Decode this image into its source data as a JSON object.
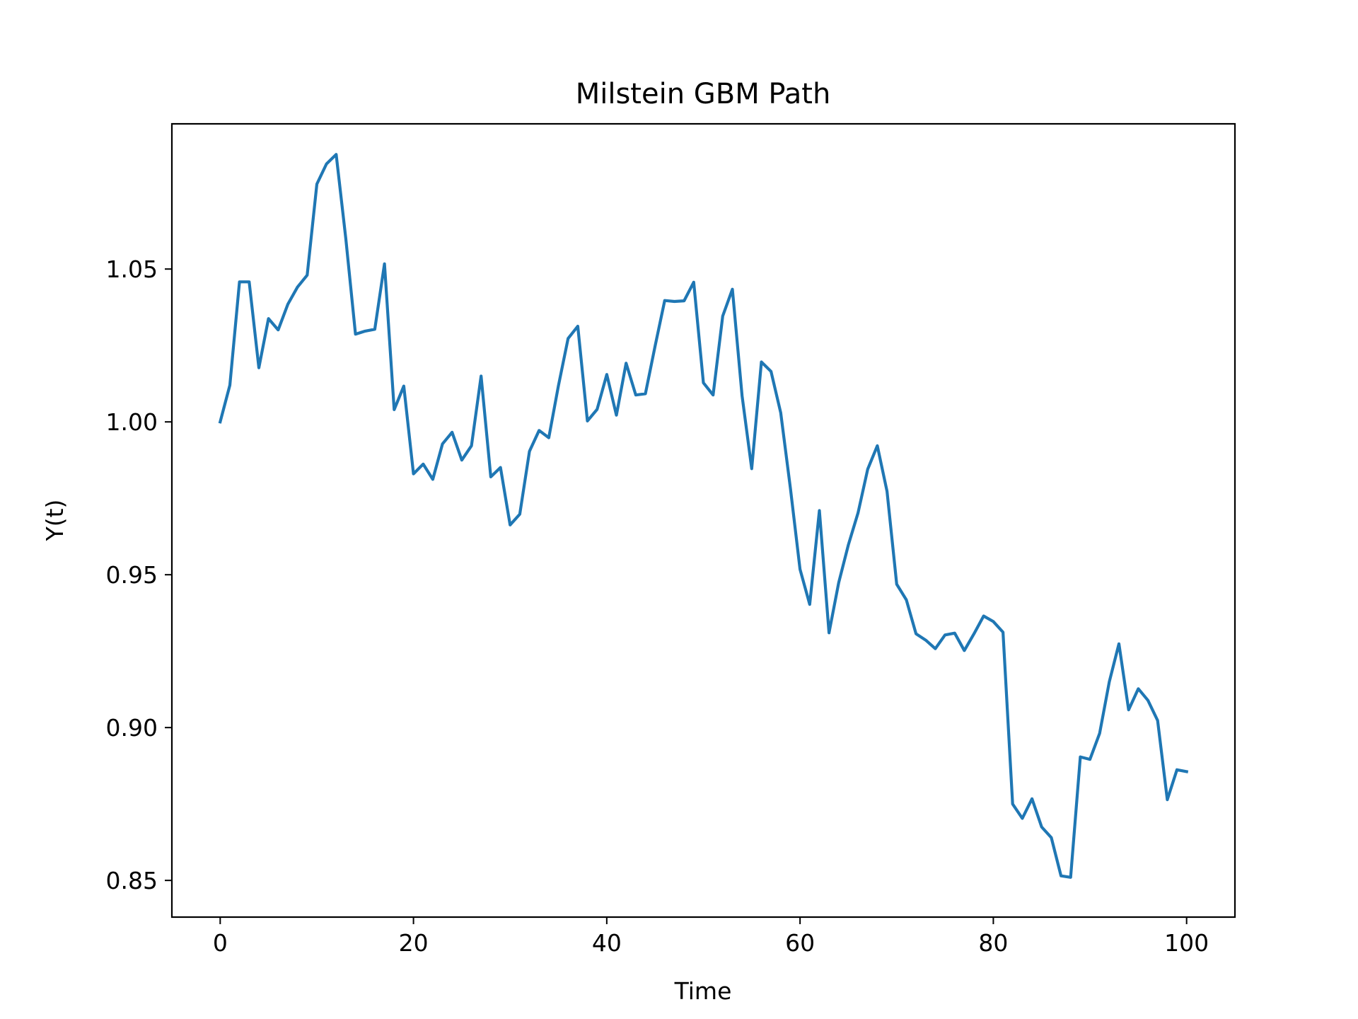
{
  "chart_data": {
    "type": "line",
    "title": "Milstein GBM Path",
    "xlabel": "Time",
    "ylabel": "Y(t)",
    "xlim": [
      -5,
      105
    ],
    "ylim": [
      0.838,
      1.0975
    ],
    "x_ticks": [
      0,
      20,
      40,
      60,
      80,
      100
    ],
    "x_tick_labels": [
      "0",
      "20",
      "40",
      "60",
      "80",
      "100"
    ],
    "y_ticks": [
      0.85,
      0.9,
      0.95,
      1.0,
      1.05
    ],
    "y_tick_labels": [
      "0.85",
      "0.90",
      "0.95",
      "1.00",
      "1.05"
    ],
    "grid": false,
    "series": [
      {
        "color": "#1f77b4",
        "x": [
          0,
          1,
          2,
          3,
          4,
          5,
          6,
          7,
          8,
          9,
          10,
          11,
          12,
          13,
          14,
          15,
          16,
          17,
          18,
          19,
          20,
          21,
          22,
          23,
          24,
          25,
          26,
          27,
          28,
          29,
          30,
          31,
          32,
          33,
          34,
          35,
          36,
          37,
          38,
          39,
          40,
          41,
          42,
          43,
          44,
          45,
          46,
          47,
          48,
          49,
          50,
          51,
          52,
          53,
          54,
          55,
          56,
          57,
          58,
          59,
          60,
          61,
          62,
          63,
          64,
          65,
          66,
          67,
          68,
          69,
          70,
          71,
          72,
          73,
          74,
          75,
          76,
          77,
          78,
          79,
          80,
          81,
          82,
          83,
          84,
          85,
          86,
          87,
          88,
          89,
          90,
          91,
          92,
          93,
          94,
          95,
          96,
          97,
          98,
          99,
          100
        ],
        "values": [
          1.0,
          1.012,
          1.0458,
          1.0458,
          1.0177,
          1.0338,
          1.0301,
          1.0385,
          1.0441,
          1.048,
          1.0778,
          1.0844,
          1.0875,
          1.06,
          1.0287,
          1.0297,
          1.0303,
          1.0517,
          1.004,
          1.0117,
          0.983,
          0.9862,
          0.9812,
          0.9928,
          0.9966,
          0.9875,
          0.9922,
          1.015,
          0.982,
          0.9851,
          0.9663,
          0.9698,
          0.9904,
          0.9972,
          0.9948,
          1.0118,
          1.0273,
          1.0313,
          1.0003,
          1.0041,
          1.0155,
          1.0022,
          1.0192,
          1.0088,
          1.0092,
          1.0248,
          1.0397,
          1.0394,
          1.0396,
          1.0457,
          1.0128,
          1.0088,
          1.0346,
          1.0434,
          1.0085,
          0.9847,
          1.0196,
          1.0165,
          1.003,
          0.9783,
          0.9518,
          0.9403,
          0.971,
          0.931,
          0.9474,
          0.9598,
          0.9702,
          0.9845,
          0.9922,
          0.9773,
          0.9469,
          0.9418,
          0.9307,
          0.9286,
          0.9258,
          0.9303,
          0.9309,
          0.9252,
          0.9307,
          0.9365,
          0.9347,
          0.9312,
          0.875,
          0.8703,
          0.8767,
          0.8675,
          0.864,
          0.8515,
          0.851,
          0.8904,
          0.8896,
          0.8981,
          0.915,
          0.9274,
          0.9058,
          0.9127,
          0.9089,
          0.9023,
          0.8764,
          0.8862,
          0.8856
        ]
      }
    ]
  }
}
